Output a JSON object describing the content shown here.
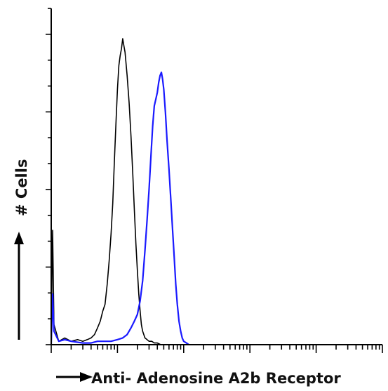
{
  "chart_data": {
    "type": "line",
    "title": "",
    "xlabel": "Anti- Adenosine A2b Receptor",
    "ylabel": "# Cells",
    "xscale": "log",
    "xlim": [
      1,
      100000
    ],
    "ylim": [
      0,
      100
    ],
    "grid": false,
    "legend": "none",
    "series": [
      {
        "color": "#000000",
        "x": [
          1,
          1.05,
          1.1,
          1.3,
          1.6,
          2,
          2.5,
          3,
          3.5,
          4,
          4.5,
          5,
          5.5,
          6,
          6.5,
          7,
          7.5,
          8,
          8.5,
          9,
          9.5,
          10,
          10.5,
          11,
          11.5,
          12,
          12.5,
          13,
          14,
          15,
          16,
          17,
          18,
          19,
          20,
          21,
          22,
          23,
          24,
          26,
          28,
          30,
          33,
          36,
          40,
          45
        ],
        "y": [
          2,
          34,
          6,
          1,
          2,
          1,
          1.5,
          1,
          1.5,
          2,
          3,
          5,
          7,
          10,
          12,
          18,
          25,
          33,
          42,
          55,
          66,
          76,
          83,
          86,
          88,
          91,
          89,
          87,
          80,
          72,
          62,
          51,
          40,
          30,
          22,
          15,
          10,
          6,
          4,
          2,
          1.5,
          1,
          1,
          0.5,
          0.5,
          0
        ]
      },
      {
        "color": "#1a1aff",
        "x": [
          1,
          1.05,
          1.1,
          1.3,
          1.6,
          2,
          3,
          4,
          5,
          6,
          8,
          10,
          12,
          14,
          16,
          18,
          20,
          22,
          24,
          26,
          28,
          30,
          32,
          34,
          36,
          38,
          40,
          42,
          44,
          46,
          48,
          50,
          53,
          56,
          60,
          64,
          68,
          72,
          76,
          80,
          85,
          90,
          95,
          100,
          110,
          120
        ],
        "y": [
          0,
          15,
          4,
          1,
          1.5,
          1,
          0.5,
          0.5,
          1,
          1,
          1,
          1.5,
          2,
          3,
          5,
          7,
          9,
          13,
          19,
          28,
          37,
          46,
          56,
          65,
          71,
          73,
          75,
          78,
          80,
          81,
          79,
          76,
          69,
          61,
          52,
          43,
          34,
          26,
          18,
          12,
          7,
          4,
          2,
          1,
          0.5,
          0
        ]
      }
    ]
  }
}
